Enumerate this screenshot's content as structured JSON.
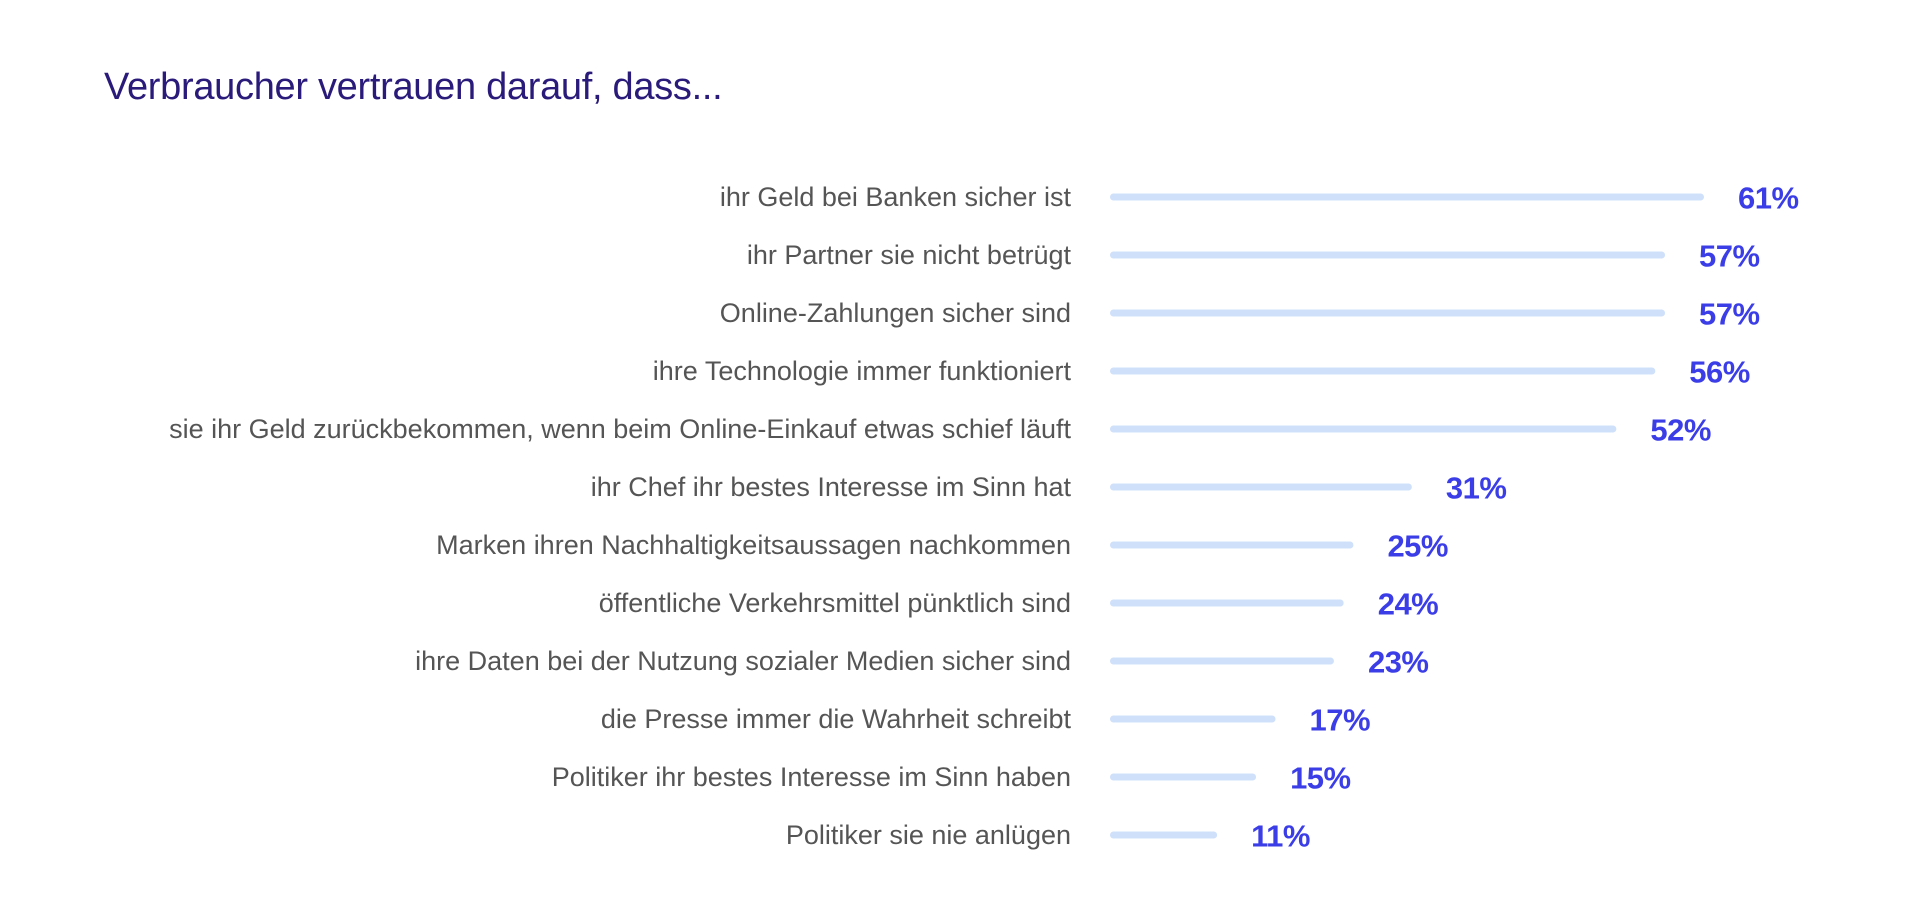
{
  "colors": {
    "title": "#2a1a7a",
    "bar": "#cfe0fb",
    "value": "#3b3ee6",
    "label": "#555555"
  },
  "chart_data": {
    "type": "bar",
    "orientation": "horizontal",
    "title": "Verbraucher vertrauen darauf, dass...",
    "xlabel": "",
    "ylabel": "",
    "xlim": [
      0,
      61
    ],
    "grid": false,
    "legend": "none",
    "categories": [
      "ihr Geld bei Banken sicher ist",
      "ihr Partner sie nicht betrügt",
      "Online-Zahlungen sicher sind",
      "ihre Technologie immer funktioniert",
      "sie ihr Geld zurückbekommen, wenn beim Online-Einkauf etwas schief läuft",
      "ihr Chef ihr bestes Interesse im Sinn hat",
      "Marken ihren Nachhaltigkeitsaussagen nachkommen",
      "öffentliche Verkehrsmittel pünktlich sind",
      "ihre Daten bei der Nutzung sozialer Medien sicher sind",
      "die Presse immer die Wahrheit schreibt",
      "Politiker ihr bestes Interesse im Sinn haben",
      "Politiker sie nie anlügen"
    ],
    "values": [
      61,
      57,
      57,
      56,
      52,
      31,
      25,
      24,
      23,
      17,
      15,
      11
    ],
    "value_labels": [
      "61%",
      "57%",
      "57%",
      "56%",
      "52%",
      "31%",
      "25%",
      "24%",
      "23%",
      "17%",
      "15%",
      "11%"
    ]
  }
}
